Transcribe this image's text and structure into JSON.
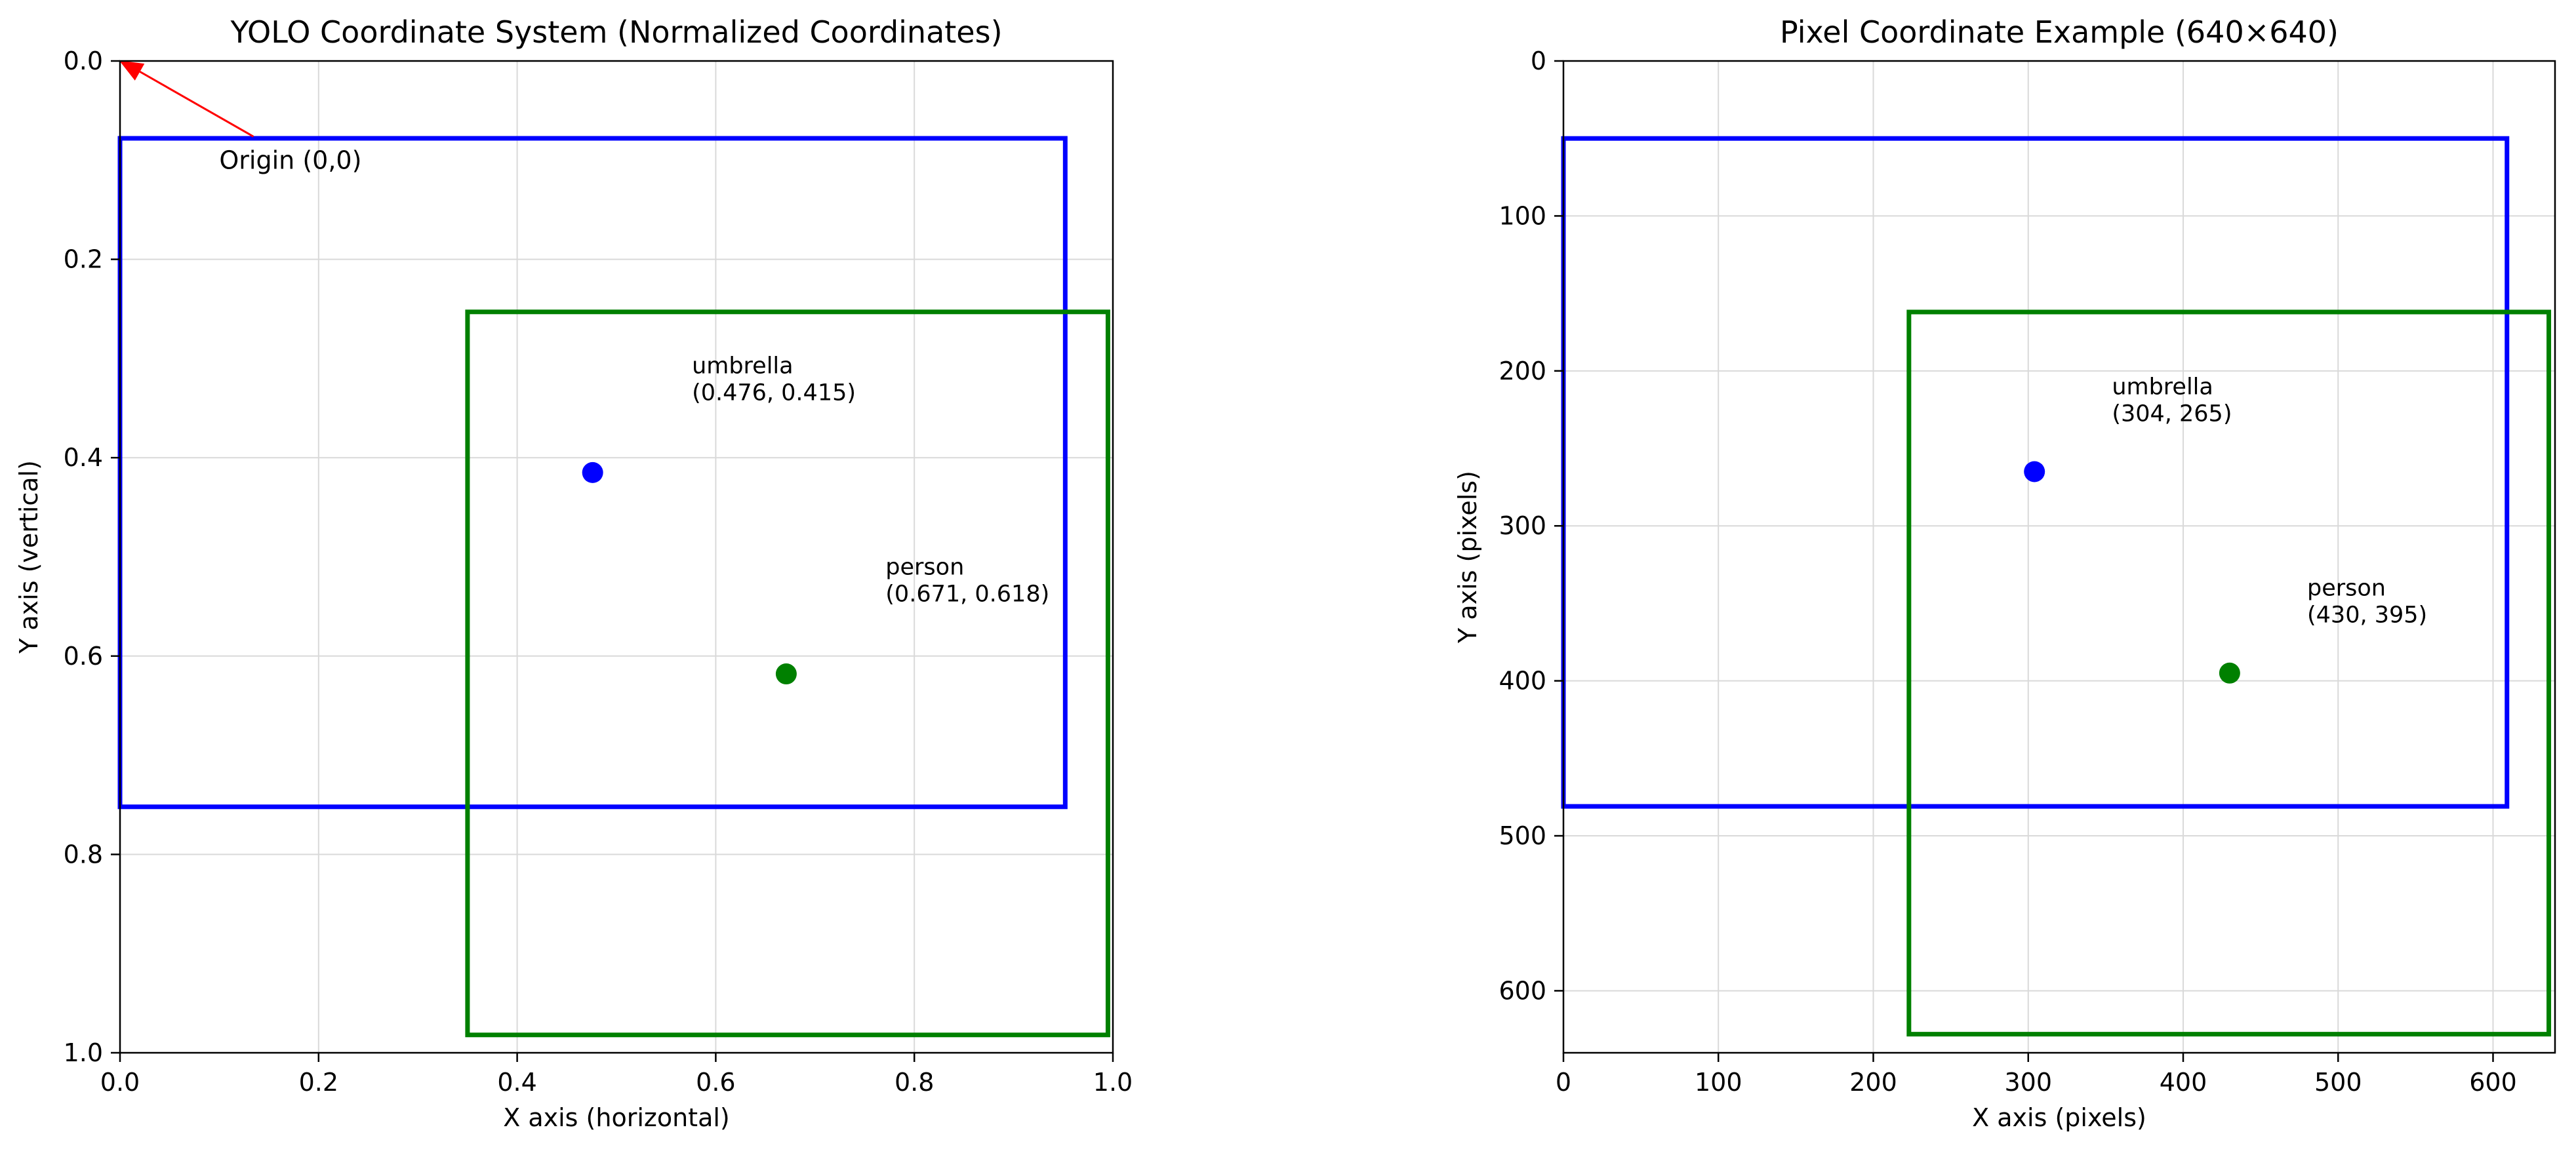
{
  "chart_data": [
    {
      "type": "scatter",
      "title": "YOLO Coordinate System (Normalized Coordinates)",
      "xlabel": "X axis (horizontal)",
      "ylabel": "Y axis (vertical)",
      "xlim": [
        0,
        1
      ],
      "ylim": [
        1,
        0
      ],
      "y_inverted": true,
      "grid": true,
      "xticks": [
        0,
        0.2,
        0.4,
        0.6,
        0.8,
        1
      ],
      "xtick_labels": [
        "0.0",
        "0.2",
        "0.4",
        "0.6",
        "0.8",
        "1.0"
      ],
      "yticks": [
        0,
        0.2,
        0.4,
        0.6,
        0.8,
        1
      ],
      "ytick_labels": [
        "0.0",
        "0.2",
        "0.4",
        "0.6",
        "0.8",
        "1.0"
      ],
      "boxes": [
        {
          "label": "umbrella",
          "color": "#0000ff",
          "x_min": 0.0,
          "x_max": 0.952,
          "y_min": 0.078,
          "y_max": 0.752
        },
        {
          "label": "person",
          "color": "#008000",
          "x_min": 0.35,
          "x_max": 0.995,
          "y_min": 0.253,
          "y_max": 0.982
        }
      ],
      "points": [
        {
          "label": "umbrella",
          "color": "#0000ff",
          "x": 0.476,
          "y": 0.415,
          "text": "umbrella\n(0.476, 0.415)",
          "text_x": 0.576,
          "text_y": 0.315
        },
        {
          "label": "person",
          "color": "#008000",
          "x": 0.671,
          "y": 0.618,
          "text": "person\n(0.671, 0.618)",
          "text_x": 0.771,
          "text_y": 0.518
        }
      ],
      "annotations": [
        {
          "text": "Origin (0,0)",
          "color": "#ff0000",
          "x": 0,
          "y": 0,
          "text_x": 0.1,
          "text_y": 0.1,
          "arrow": true
        }
      ]
    },
    {
      "type": "scatter",
      "title": "Pixel Coordinate Example (640×640)",
      "xlabel": "X axis (pixels)",
      "ylabel": "Y axis (pixels)",
      "xlim": [
        0,
        640
      ],
      "ylim": [
        640,
        0
      ],
      "y_inverted": true,
      "grid": true,
      "xticks": [
        0,
        100,
        200,
        300,
        400,
        500,
        600
      ],
      "xtick_labels": [
        "0",
        "100",
        "200",
        "300",
        "400",
        "500",
        "600"
      ],
      "yticks": [
        0,
        100,
        200,
        300,
        400,
        500,
        600
      ],
      "ytick_labels": [
        "0",
        "100",
        "200",
        "300",
        "400",
        "500",
        "600"
      ],
      "boxes": [
        {
          "label": "umbrella",
          "color": "#0000ff",
          "x_min": 0,
          "x_max": 609,
          "y_min": 50,
          "y_max": 481
        },
        {
          "label": "person",
          "color": "#008000",
          "x_min": 223,
          "x_max": 636,
          "y_min": 162,
          "y_max": 628
        }
      ],
      "points": [
        {
          "label": "umbrella",
          "color": "#0000ff",
          "x": 304,
          "y": 265,
          "text": "umbrella\n(304, 265)",
          "text_x": 354,
          "text_y": 215
        },
        {
          "label": "person",
          "color": "#008000",
          "x": 430,
          "y": 395,
          "text": "person\n(430, 395)",
          "text_x": 480,
          "text_y": 345
        }
      ],
      "annotations": []
    }
  ]
}
